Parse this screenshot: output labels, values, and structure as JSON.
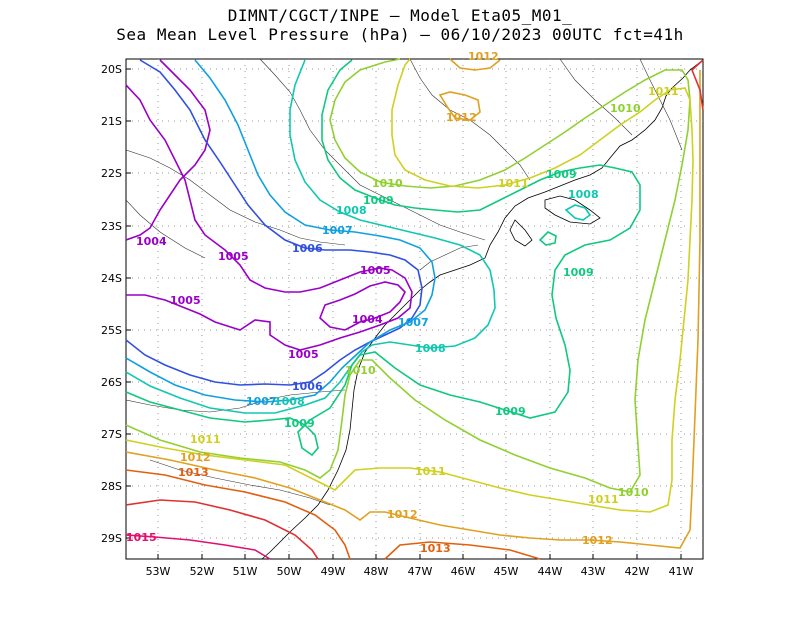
{
  "title": {
    "line1": "DIMNT/CGCT/INPE –  Model Eta05_M01_",
    "line2": "Sea Mean Level Pressure (hPa) – 06/10/2023 00UTC fct=41h"
  },
  "axes": {
    "lat_labels": [
      "20S",
      "21S",
      "22S",
      "23S",
      "24S",
      "25S",
      "26S",
      "27S",
      "28S",
      "29S"
    ],
    "lon_labels": [
      "53W",
      "52W",
      "51W",
      "50W",
      "49W",
      "48W",
      "47W",
      "46W",
      "45W",
      "44W",
      "43W",
      "42W",
      "41W"
    ]
  },
  "contour_labels": [
    {
      "text": "1004",
      "color": "#9a00c8"
    },
    {
      "text": "1005",
      "color": "#9a00c8"
    },
    {
      "text": "1005",
      "color": "#9a00c8"
    },
    {
      "text": "1005",
      "color": "#9a00c8"
    },
    {
      "text": "1005",
      "color": "#9a00c8"
    },
    {
      "text": "1004",
      "color": "#9a00c8"
    },
    {
      "text": "1006",
      "color": "#3050e0"
    },
    {
      "text": "1006",
      "color": "#3050e0"
    },
    {
      "text": "1007",
      "color": "#10a0e0"
    },
    {
      "text": "1007",
      "color": "#10a0e0"
    },
    {
      "text": "1007",
      "color": "#10a0e0"
    },
    {
      "text": "1008",
      "color": "#10c8b0"
    },
    {
      "text": "1008",
      "color": "#10c8b0"
    },
    {
      "text": "1008",
      "color": "#10c8b0"
    },
    {
      "text": "1008",
      "color": "#10c8b0"
    },
    {
      "text": "1009",
      "color": "#10c880"
    },
    {
      "text": "1009",
      "color": "#10c880"
    },
    {
      "text": "1009",
      "color": "#10c880"
    },
    {
      "text": "1009",
      "color": "#10c880"
    },
    {
      "text": "1009",
      "color": "#10c880"
    },
    {
      "text": "1010",
      "color": "#90d030"
    },
    {
      "text": "1010",
      "color": "#90d030"
    },
    {
      "text": "1010",
      "color": "#90d030"
    },
    {
      "text": "1010",
      "color": "#90d030"
    },
    {
      "text": "1011",
      "color": "#d0d020"
    },
    {
      "text": "1011",
      "color": "#d0d020"
    },
    {
      "text": "1011",
      "color": "#d0d020"
    },
    {
      "text": "1011",
      "color": "#d0d020"
    },
    {
      "text": "1011",
      "color": "#d0d020"
    },
    {
      "text": "1012",
      "color": "#e0a020"
    },
    {
      "text": "1012",
      "color": "#e0a020"
    },
    {
      "text": "1012",
      "color": "#e0a020"
    },
    {
      "text": "1012",
      "color": "#e0a020"
    },
    {
      "text": "1012",
      "color": "#e0a020"
    },
    {
      "text": "1013",
      "color": "#e06010"
    },
    {
      "text": "1013",
      "color": "#e06010"
    },
    {
      "text": "1015",
      "color": "#e01070"
    }
  ]
}
